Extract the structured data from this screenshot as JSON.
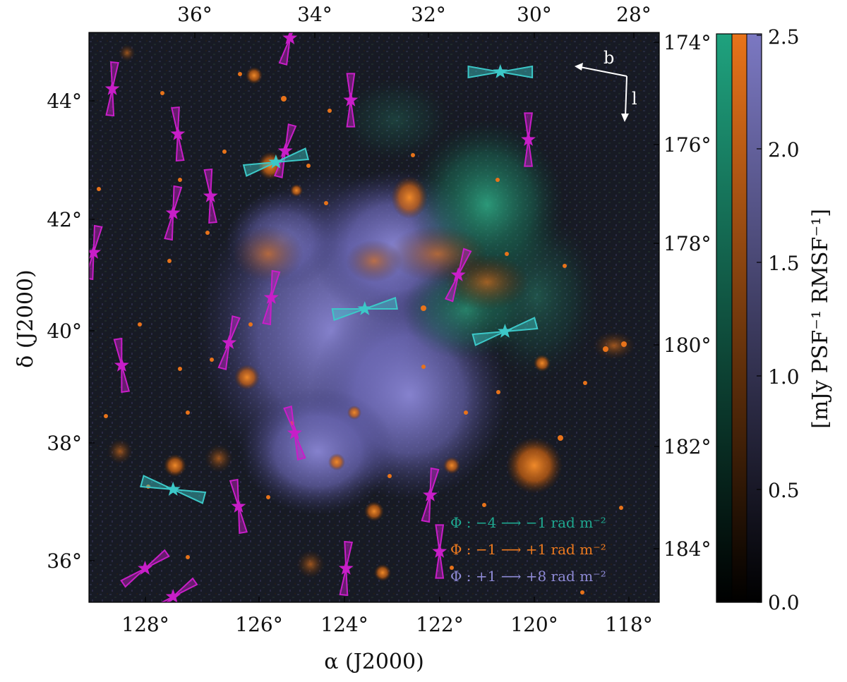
{
  "chart_data": {
    "type": "scatter",
    "xlabel": "α (J2000)",
    "ylabel": "δ (J2000)",
    "top_axis_ticks": [
      "36°",
      "34°",
      "32°",
      "30°",
      "28°"
    ],
    "right_axis_ticks": [
      "174°",
      "176°",
      "178°",
      "180°",
      "182°",
      "184°"
    ],
    "x_ticks": [
      "128°",
      "126°",
      "124°",
      "122°",
      "120°",
      "118°"
    ],
    "y_ticks": [
      "44°",
      "42°",
      "40°",
      "38°",
      "36°"
    ],
    "xlim": [
      129.5,
      117.3
    ],
    "ylim": [
      35.2,
      45.3
    ],
    "colorbar": {
      "label": "[mJy PSF⁻¹ RMSF⁻¹]",
      "ticks": [
        "2.5",
        "2.0",
        "1.5",
        "1.0",
        "0.5",
        "0.0"
      ],
      "range": [
        0.0,
        2.5
      ],
      "colors": [
        "#1fa27e",
        "#e8731a",
        "#7b78c2"
      ]
    },
    "compass": {
      "b_label": "b",
      "l_label": "l"
    },
    "legend": [
      {
        "text": "Φ : −4 ⟶ −1 rad m⁻²",
        "color": "#1fa890"
      },
      {
        "text": "Φ : −1 ⟶ +1 rad m⁻²",
        "color": "#ee7a1e"
      },
      {
        "text": "Φ : +1 ⟶ +8 rad m⁻²",
        "color": "#8e8ad6"
      }
    ],
    "sources_magenta": [
      {
        "ra": 129.0,
        "dec": 44.3,
        "angle": 5
      },
      {
        "ra": 127.6,
        "dec": 43.5,
        "angle": -5
      },
      {
        "ra": 127.7,
        "dec": 42.1,
        "angle": 10
      },
      {
        "ra": 126.9,
        "dec": 42.4,
        "angle": -5
      },
      {
        "ra": 129.4,
        "dec": 41.4,
        "angle": 10
      },
      {
        "ra": 125.3,
        "dec": 43.2,
        "angle": 15
      },
      {
        "ra": 125.6,
        "dec": 40.6,
        "angle": 10
      },
      {
        "ra": 126.5,
        "dec": 39.8,
        "angle": 15
      },
      {
        "ra": 128.8,
        "dec": 39.4,
        "angle": -8
      },
      {
        "ra": 125.1,
        "dec": 38.2,
        "angle": -15
      },
      {
        "ra": 126.3,
        "dec": 36.9,
        "angle": -10
      },
      {
        "ra": 123.9,
        "dec": 44.1,
        "angle": 0
      },
      {
        "ra": 124.0,
        "dec": 35.8,
        "angle": 5
      },
      {
        "ra": 122.2,
        "dec": 37.1,
        "angle": 10
      },
      {
        "ra": 122.0,
        "dec": 36.1,
        "angle": 0
      },
      {
        "ra": 121.6,
        "dec": 41.0,
        "angle": 20
      },
      {
        "ra": 120.1,
        "dec": 43.4,
        "angle": 0
      },
      {
        "ra": 128.3,
        "dec": 35.8,
        "angle": 55
      },
      {
        "ra": 127.7,
        "dec": 35.3,
        "angle": 55
      },
      {
        "ra": 125.2,
        "dec": 45.2,
        "angle": 15
      }
    ],
    "sources_cyan": [
      {
        "ra": 120.7,
        "dec": 44.6,
        "angle": 90
      },
      {
        "ra": 125.5,
        "dec": 43.0,
        "angle": 75
      },
      {
        "ra": 123.6,
        "dec": 40.4,
        "angle": 80
      },
      {
        "ra": 120.6,
        "dec": 40.0,
        "angle": 75
      },
      {
        "ra": 127.7,
        "dec": 37.2,
        "angle": 105
      }
    ]
  }
}
